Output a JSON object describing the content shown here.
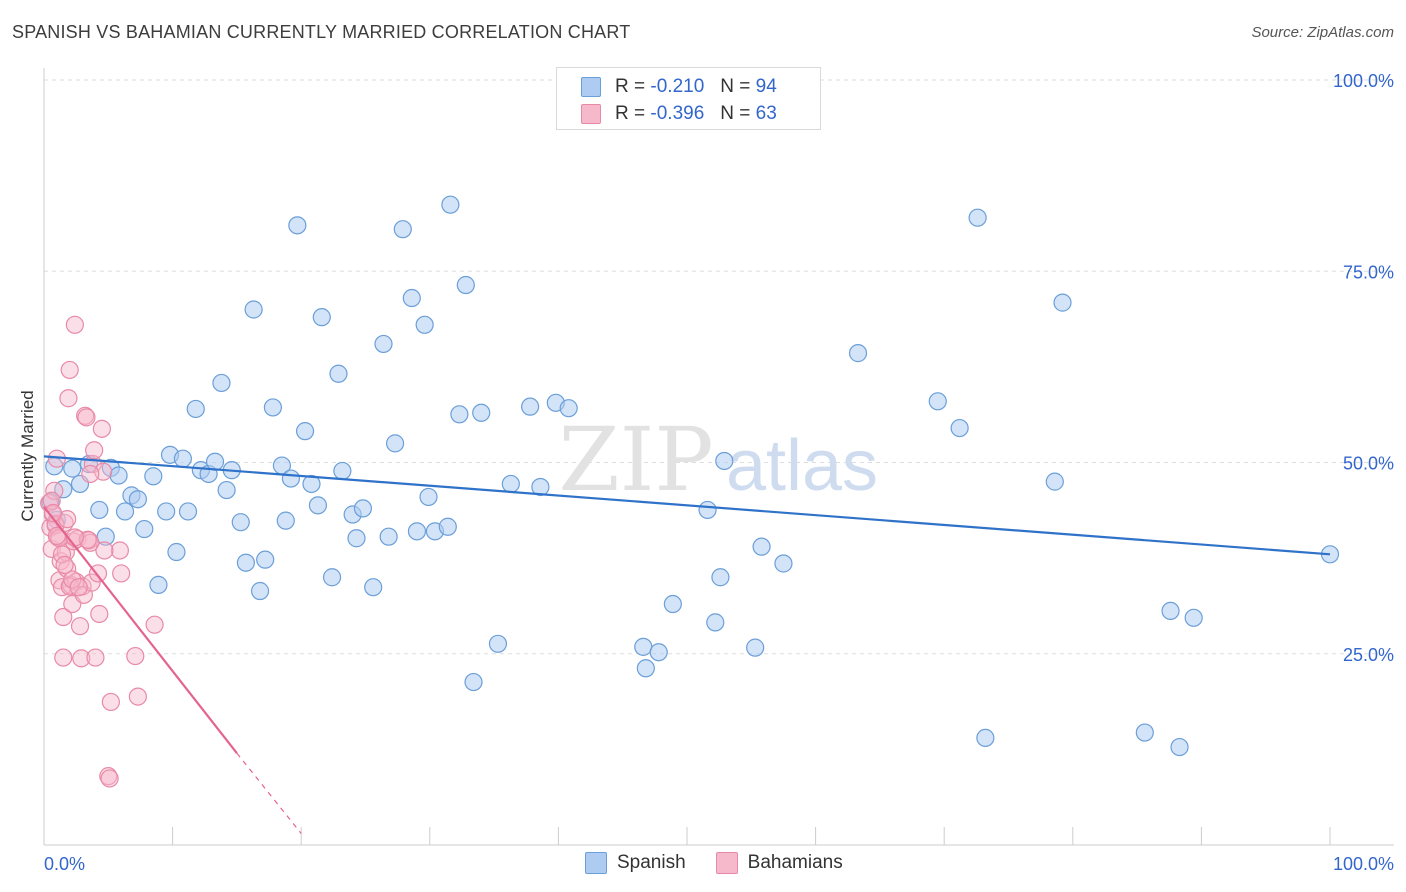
{
  "title": "SPANISH VS BAHAMIAN CURRENTLY MARRIED CORRELATION CHART",
  "source": "Source: ZipAtlas.com",
  "watermark": {
    "zip": "ZIP",
    "atlas": "atlas"
  },
  "legend_top": [
    {
      "r_label": "R =",
      "r_value": "-0.210",
      "n_label": "N =",
      "n_value": "94"
    },
    {
      "r_label": "R =",
      "r_value": "-0.396",
      "n_label": "N =",
      "n_value": "63"
    }
  ],
  "legend_bottom": {
    "spanish": "Spanish",
    "bahamians": "Bahamians"
  },
  "colors": {
    "spanish_fill": "#aeccf2",
    "spanish_stroke": "#6b9fd8",
    "spanish_line": "#2f72c9",
    "bahamian_fill": "#f6b8cb",
    "bahamian_stroke": "#e88aa7",
    "bahamian_line": "#e5638f",
    "grid": "#dddddd",
    "tick_text": "#3366cc"
  },
  "chart_data": {
    "type": "scatter",
    "title": "SPANISH VS BAHAMIAN CURRENTLY MARRIED CORRELATION CHART",
    "xlabel": "",
    "ylabel": "Currently Married",
    "xlim": [
      0,
      100
    ],
    "ylim": [
      0,
      100
    ],
    "x_tick_labels": [
      "0.0%",
      "100.0%"
    ],
    "y_ticks": [
      {
        "value": 100,
        "label": "100.0%"
      },
      {
        "value": 75,
        "label": "75.0%"
      },
      {
        "value": 50,
        "label": "50.0%"
      },
      {
        "value": 25,
        "label": "25.0%"
      }
    ],
    "series": [
      {
        "name": "Spanish",
        "r": -0.21,
        "n": 94,
        "trend": {
          "x0": 0,
          "y0": 50.8,
          "x1": 100,
          "y1": 38.0
        },
        "points": [
          [
            0.8,
            49.5
          ],
          [
            1.5,
            46.5
          ],
          [
            2.2,
            49.2
          ],
          [
            2.8,
            47.2
          ],
          [
            3.5,
            49.8
          ],
          [
            4.3,
            43.8
          ],
          [
            4.8,
            40.3
          ],
          [
            5.2,
            49.3
          ],
          [
            5.8,
            48.3
          ],
          [
            6.3,
            43.6
          ],
          [
            6.8,
            45.7
          ],
          [
            7.3,
            45.2
          ],
          [
            7.8,
            41.3
          ],
          [
            8.5,
            48.2
          ],
          [
            8.9,
            34.0
          ],
          [
            9.5,
            43.6
          ],
          [
            9.8,
            51.0
          ],
          [
            10.3,
            38.3
          ],
          [
            10.8,
            50.5
          ],
          [
            11.2,
            43.6
          ],
          [
            11.8,
            57.0
          ],
          [
            12.2,
            49.0
          ],
          [
            12.8,
            48.5
          ],
          [
            13.3,
            50.1
          ],
          [
            13.8,
            60.4
          ],
          [
            14.2,
            46.4
          ],
          [
            14.6,
            49.0
          ],
          [
            15.3,
            42.2
          ],
          [
            15.7,
            36.9
          ],
          [
            16.3,
            70.0
          ],
          [
            16.8,
            33.2
          ],
          [
            17.2,
            37.3
          ],
          [
            17.8,
            57.2
          ],
          [
            18.5,
            49.6
          ],
          [
            18.8,
            42.4
          ],
          [
            19.2,
            47.9
          ],
          [
            19.7,
            81.0
          ],
          [
            20.3,
            54.1
          ],
          [
            20.8,
            47.2
          ],
          [
            21.3,
            44.4
          ],
          [
            21.6,
            69.0
          ],
          [
            22.4,
            35.0
          ],
          [
            22.9,
            61.6
          ],
          [
            23.2,
            48.9
          ],
          [
            24.0,
            43.2
          ],
          [
            24.3,
            40.1
          ],
          [
            24.8,
            44.0
          ],
          [
            25.6,
            33.7
          ],
          [
            26.4,
            65.5
          ],
          [
            26.8,
            40.3
          ],
          [
            27.3,
            52.5
          ],
          [
            27.9,
            80.5
          ],
          [
            28.6,
            71.5
          ],
          [
            29.0,
            41.0
          ],
          [
            29.6,
            68.0
          ],
          [
            29.9,
            45.5
          ],
          [
            30.4,
            41.0
          ],
          [
            31.4,
            41.6
          ],
          [
            31.6,
            83.7
          ],
          [
            32.3,
            56.3
          ],
          [
            32.8,
            73.2
          ],
          [
            33.4,
            21.3
          ],
          [
            34.0,
            56.5
          ],
          [
            35.3,
            26.3
          ],
          [
            36.3,
            47.2
          ],
          [
            37.8,
            57.3
          ],
          [
            38.6,
            46.8
          ],
          [
            39.8,
            57.8
          ],
          [
            40.8,
            57.1
          ],
          [
            46.6,
            25.9
          ],
          [
            46.8,
            23.1
          ],
          [
            47.8,
            25.2
          ],
          [
            48.9,
            31.5
          ],
          [
            51.6,
            43.8
          ],
          [
            52.2,
            29.1
          ],
          [
            52.6,
            35.0
          ],
          [
            52.9,
            50.2
          ],
          [
            55.3,
            25.8
          ],
          [
            55.8,
            39.0
          ],
          [
            63.3,
            64.3
          ],
          [
            69.5,
            58.0
          ],
          [
            71.2,
            54.5
          ],
          [
            73.2,
            14.0
          ],
          [
            72.6,
            82.0
          ],
          [
            78.6,
            47.5
          ],
          [
            79.2,
            70.9
          ],
          [
            85.6,
            14.7
          ],
          [
            87.6,
            30.6
          ],
          [
            88.3,
            12.8
          ],
          [
            89.4,
            29.7
          ],
          [
            100.0,
            38.0
          ],
          [
            0.5,
            44.8
          ],
          [
            1.0,
            42.5
          ],
          [
            57.5,
            36.8
          ]
        ]
      },
      {
        "name": "Bahamians",
        "r": -0.396,
        "n": 63,
        "trend": {
          "x0": 0,
          "y0": 44.2,
          "x1": 15,
          "y1": 12.0,
          "dash_to_x": 20,
          "dash_to_y": 1.5
        },
        "points": [
          [
            0.4,
            44.7
          ],
          [
            0.5,
            41.5
          ],
          [
            0.6,
            38.7
          ],
          [
            0.7,
            43.2
          ],
          [
            0.8,
            46.3
          ],
          [
            0.9,
            42.0
          ],
          [
            1.0,
            50.5
          ],
          [
            1.1,
            40.2
          ],
          [
            1.2,
            34.6
          ],
          [
            1.3,
            37.1
          ],
          [
            1.4,
            33.7
          ],
          [
            1.5,
            29.8
          ],
          [
            1.5,
            24.5
          ],
          [
            1.6,
            42.1
          ],
          [
            1.7,
            38.3
          ],
          [
            1.8,
            36.1
          ],
          [
            1.9,
            58.4
          ],
          [
            2.0,
            62.1
          ],
          [
            2.1,
            34.0
          ],
          [
            2.2,
            31.5
          ],
          [
            2.3,
            39.7
          ],
          [
            2.4,
            68.0
          ],
          [
            2.5,
            34.4
          ],
          [
            2.6,
            40.0
          ],
          [
            2.8,
            28.6
          ],
          [
            2.9,
            24.4
          ],
          [
            3.0,
            33.8
          ],
          [
            3.1,
            32.7
          ],
          [
            3.2,
            56.1
          ],
          [
            3.3,
            55.9
          ],
          [
            3.5,
            39.8
          ],
          [
            3.6,
            39.5
          ],
          [
            3.7,
            34.3
          ],
          [
            3.8,
            49.8
          ],
          [
            3.9,
            51.6
          ],
          [
            4.0,
            24.5
          ],
          [
            4.2,
            35.5
          ],
          [
            4.3,
            30.2
          ],
          [
            4.5,
            54.4
          ],
          [
            4.6,
            48.8
          ],
          [
            5.0,
            9.0
          ],
          [
            5.1,
            8.7
          ],
          [
            5.2,
            18.7
          ],
          [
            5.9,
            38.5
          ],
          [
            6.0,
            35.5
          ],
          [
            7.1,
            24.7
          ],
          [
            7.3,
            19.4
          ],
          [
            8.6,
            28.8
          ],
          [
            0.6,
            45.0
          ],
          [
            0.9,
            41.8
          ],
          [
            1.2,
            40.1
          ],
          [
            1.4,
            38.0
          ],
          [
            1.8,
            42.6
          ],
          [
            2.0,
            33.8
          ],
          [
            2.2,
            34.7
          ],
          [
            2.7,
            33.7
          ],
          [
            3.4,
            39.9
          ],
          [
            3.6,
            48.5
          ],
          [
            0.7,
            43.4
          ],
          [
            1.0,
            40.4
          ],
          [
            1.6,
            36.6
          ],
          [
            2.4,
            40.2
          ],
          [
            4.7,
            38.5
          ]
        ]
      }
    ]
  }
}
